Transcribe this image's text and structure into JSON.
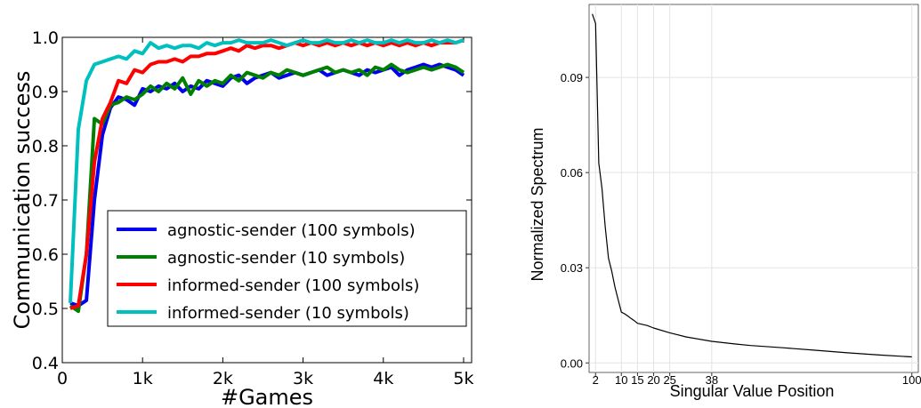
{
  "chart_data": [
    {
      "type": "line",
      "xlabel": "#Games",
      "ylabel": "Communication success",
      "xlim": [
        0,
        5100
      ],
      "ylim": [
        0.4,
        1.0
      ],
      "xticks": [
        0,
        1000,
        2000,
        3000,
        4000,
        5000
      ],
      "xtick_labels": [
        "0",
        "1k",
        "2k",
        "3k",
        "4k",
        "5k"
      ],
      "yticks": [
        0.4,
        0.5,
        0.6,
        0.7,
        0.8,
        0.9,
        1.0
      ],
      "ytick_labels": [
        "0.4",
        "0.5",
        "0.6",
        "0.7",
        "0.8",
        "0.9",
        "1.0"
      ],
      "grid": false,
      "legend_position": "lower-right",
      "x": [
        100,
        200,
        300,
        400,
        500,
        600,
        700,
        800,
        900,
        1000,
        1100,
        1200,
        1300,
        1400,
        1500,
        1600,
        1700,
        1800,
        1900,
        2000,
        2100,
        2200,
        2300,
        2400,
        2500,
        2600,
        2700,
        2800,
        2900,
        3000,
        3100,
        3200,
        3300,
        3400,
        3500,
        3600,
        3700,
        3800,
        3900,
        4000,
        4100,
        4200,
        4300,
        4400,
        4500,
        4600,
        4700,
        4800,
        4900,
        5000
      ],
      "series": [
        {
          "name": "agnostic-sender (100 symbols)",
          "color": "#0000ee",
          "values": [
            0.51,
            0.505,
            0.515,
            0.7,
            0.82,
            0.87,
            0.89,
            0.885,
            0.875,
            0.905,
            0.9,
            0.91,
            0.905,
            0.915,
            0.9,
            0.91,
            0.905,
            0.92,
            0.915,
            0.91,
            0.925,
            0.93,
            0.915,
            0.925,
            0.93,
            0.935,
            0.925,
            0.93,
            0.935,
            0.93,
            0.935,
            0.94,
            0.93,
            0.935,
            0.94,
            0.935,
            0.93,
            0.94,
            0.935,
            0.94,
            0.945,
            0.93,
            0.94,
            0.945,
            0.95,
            0.945,
            0.95,
            0.945,
            0.94,
            0.93
          ]
        },
        {
          "name": "agnostic-sender (10 symbols)",
          "color": "#008000",
          "values": [
            0.505,
            0.495,
            0.6,
            0.85,
            0.84,
            0.875,
            0.88,
            0.89,
            0.885,
            0.895,
            0.91,
            0.9,
            0.915,
            0.905,
            0.925,
            0.895,
            0.92,
            0.91,
            0.92,
            0.915,
            0.93,
            0.92,
            0.935,
            0.93,
            0.925,
            0.935,
            0.93,
            0.94,
            0.935,
            0.93,
            0.935,
            0.94,
            0.945,
            0.935,
            0.94,
            0.935,
            0.94,
            0.93,
            0.945,
            0.94,
            0.95,
            0.94,
            0.935,
            0.94,
            0.945,
            0.94,
            0.945,
            0.95,
            0.945,
            0.935
          ]
        },
        {
          "name": "informed-sender (100 symbols)",
          "color": "#ff0000",
          "values": [
            0.5,
            0.505,
            0.6,
            0.77,
            0.85,
            0.88,
            0.92,
            0.915,
            0.94,
            0.935,
            0.95,
            0.955,
            0.955,
            0.96,
            0.955,
            0.965,
            0.965,
            0.97,
            0.97,
            0.975,
            0.98,
            0.975,
            0.985,
            0.98,
            0.985,
            0.985,
            0.98,
            0.985,
            0.99,
            0.985,
            0.99,
            0.985,
            0.99,
            0.985,
            0.99,
            0.985,
            0.99,
            0.985,
            0.99,
            0.985,
            0.99,
            0.985,
            0.99,
            0.985,
            0.99,
            0.985,
            0.99,
            0.99,
            0.99,
            0.995
          ]
        },
        {
          "name": "informed-sender (10 symbols)",
          "color": "#00bfbf",
          "values": [
            0.51,
            0.83,
            0.92,
            0.95,
            0.955,
            0.96,
            0.965,
            0.96,
            0.975,
            0.97,
            0.99,
            0.98,
            0.985,
            0.98,
            0.985,
            0.985,
            0.98,
            0.99,
            0.985,
            0.99,
            0.99,
            0.995,
            0.99,
            0.99,
            0.99,
            0.995,
            0.99,
            0.985,
            0.99,
            0.995,
            0.99,
            0.99,
            0.995,
            0.99,
            0.99,
            0.995,
            0.99,
            0.995,
            0.99,
            0.99,
            0.995,
            0.99,
            0.995,
            0.99,
            0.99,
            0.995,
            0.99,
            0.995,
            0.99,
            0.995
          ]
        }
      ]
    },
    {
      "type": "line",
      "xlabel": "Singular Value Position",
      "ylabel": "Normalized Spectrum",
      "xlim": [
        0,
        102
      ],
      "ylim": [
        -0.003,
        0.113
      ],
      "xticks": [
        2,
        10,
        15,
        20,
        25,
        38,
        100
      ],
      "xtick_labels": [
        "2",
        "10",
        "15",
        "20",
        "25",
        "38",
        "100"
      ],
      "yticks": [
        0.0,
        0.03,
        0.06,
        0.09
      ],
      "ytick_labels": [
        "0.00",
        "0.03",
        "0.06",
        "0.09"
      ],
      "grid": true,
      "series": [
        {
          "color": "#000000",
          "x": [
            1,
            2,
            3,
            4,
            5,
            6,
            7,
            8,
            9,
            10,
            11,
            12,
            13,
            14,
            15,
            18,
            20,
            25,
            30,
            38,
            45,
            50,
            60,
            70,
            80,
            90,
            100
          ],
          "values": [
            0.11,
            0.107,
            0.063,
            0.055,
            0.043,
            0.033,
            0.029,
            0.024,
            0.02,
            0.016,
            0.0155,
            0.0148,
            0.014,
            0.0133,
            0.0125,
            0.0118,
            0.011,
            0.0095,
            0.0082,
            0.0068,
            0.006,
            0.0055,
            0.0048,
            0.004,
            0.0032,
            0.0025,
            0.0019
          ]
        }
      ]
    }
  ]
}
